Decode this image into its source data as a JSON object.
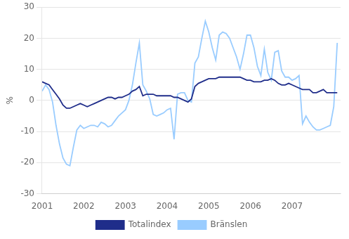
{
  "chart_data": {
    "type": "line",
    "ylabel": "%",
    "x": [
      2001,
      2001.0833333333333,
      2001.1666666666667,
      2001.25,
      2001.3333333333333,
      2001.4166666666667,
      2001.5,
      2001.5833333333333,
      2001.6666666666667,
      2001.75,
      2001.8333333333333,
      2001.9166666666667,
      2002,
      2002.0833333333333,
      2002.1666666666667,
      2002.25,
      2002.3333333333333,
      2002.4166666666667,
      2002.5,
      2002.5833333333333,
      2002.6666666666667,
      2002.75,
      2002.8333333333333,
      2002.9166666666667,
      2003,
      2003.0833333333333,
      2003.1666666666667,
      2003.25,
      2003.3333333333333,
      2003.4166666666667,
      2003.5,
      2003.5833333333333,
      2003.6666666666667,
      2003.75,
      2003.8333333333333,
      2003.9166666666667,
      2004,
      2004.0833333333333,
      2004.1666666666667,
      2004.25,
      2004.3333333333333,
      2004.4166666666667,
      2004.5,
      2004.5833333333333,
      2004.6666666666667,
      2004.75,
      2004.8333333333333,
      2004.9166666666667,
      2005,
      2005.0833333333333,
      2005.1666666666667,
      2005.25,
      2005.3333333333333,
      2005.4166666666667,
      2005.5,
      2005.5833333333333,
      2005.6666666666667,
      2005.75,
      2005.8333333333333,
      2005.9166666666667,
      2006,
      2006.0833333333333,
      2006.1666666666667,
      2006.25,
      2006.3333333333333,
      2006.4166666666667,
      2006.5,
      2006.5833333333333,
      2006.6666666666667,
      2006.75,
      2006.8333333333333,
      2006.9166666666667,
      2007,
      2007.0833333333333,
      2007.1666666666667,
      2007.25,
      2007.3333333333333,
      2007.4166666666667,
      2007.5,
      2007.5833333333333,
      2007.6666666666667,
      2007.75,
      2007.8333333333333,
      2007.9166666666667,
      2008,
      2008.0833333333333
    ],
    "series": [
      {
        "name": "Totalindex",
        "color": "#1F2D8A",
        "values": [
          6.0,
          5.5,
          5.0,
          3.5,
          2.0,
          0.5,
          -1.5,
          -2.5,
          -2.5,
          -2.0,
          -1.5,
          -1.0,
          -1.5,
          -2.0,
          -1.5,
          -1.0,
          -0.5,
          0.0,
          0.5,
          1.0,
          1.0,
          0.5,
          1.0,
          1.0,
          1.5,
          2.0,
          3.0,
          3.5,
          4.5,
          1.5,
          2.0,
          2.0,
          2.0,
          1.5,
          1.5,
          1.5,
          1.5,
          1.5,
          1.0,
          1.0,
          0.5,
          0.0,
          -0.5,
          0.5,
          4.5,
          5.5,
          6.0,
          6.5,
          7.0,
          7.0,
          7.0,
          7.5,
          7.5,
          7.5,
          7.5,
          7.5,
          7.5,
          7.5,
          7.0,
          6.5,
          6.5,
          6.0,
          6.0,
          6.0,
          6.5,
          6.5,
          7.0,
          6.5,
          5.5,
          5.0,
          5.0,
          5.5,
          5.0,
          4.5,
          4.0,
          3.5,
          3.5,
          3.5,
          2.5,
          2.5,
          3.0,
          3.5,
          2.5,
          2.5,
          2.5,
          2.5
        ]
      },
      {
        "name": "Bränslen",
        "color": "#99CCFF",
        "values": [
          3.0,
          5.0,
          3.5,
          -0.5,
          -8.0,
          -14.0,
          -18.5,
          -20.5,
          -21.0,
          -15.0,
          -9.5,
          -8.0,
          -9.0,
          -8.5,
          -8.0,
          -8.0,
          -8.5,
          -7.0,
          -7.5,
          -8.5,
          -8.0,
          -6.5,
          -5.0,
          -4.0,
          -3.0,
          0.0,
          5.0,
          12.0,
          18.5,
          5.0,
          3.0,
          0.5,
          -4.5,
          -5.0,
          -4.5,
          -4.0,
          -3.0,
          -2.5,
          -12.5,
          2.0,
          2.5,
          2.5,
          0.0,
          -0.5,
          12.0,
          14.0,
          20.0,
          25.5,
          22.0,
          17.0,
          13.0,
          21.0,
          22.0,
          21.5,
          20.0,
          17.0,
          14.0,
          10.0,
          15.0,
          21.0,
          21.0,
          17.0,
          11.0,
          8.0,
          16.5,
          9.0,
          6.5,
          15.5,
          16.0,
          9.5,
          7.5,
          7.5,
          6.5,
          7.0,
          8.0,
          -7.5,
          -5.0,
          -7.0,
          -8.5,
          -9.5,
          -9.5,
          -9.0,
          -8.5,
          -8.0,
          -2.0,
          18.5
        ]
      }
    ],
    "xlim": [
      2001,
      2008.1633333333334
    ],
    "xticks": [
      2001,
      2002,
      2003,
      2004,
      2005,
      2006,
      2007
    ],
    "ylim": [
      -30,
      30
    ],
    "yticks": [
      -30,
      -20,
      -10,
      0,
      10,
      20,
      30
    ],
    "grid": "y",
    "legend": "bottom"
  }
}
